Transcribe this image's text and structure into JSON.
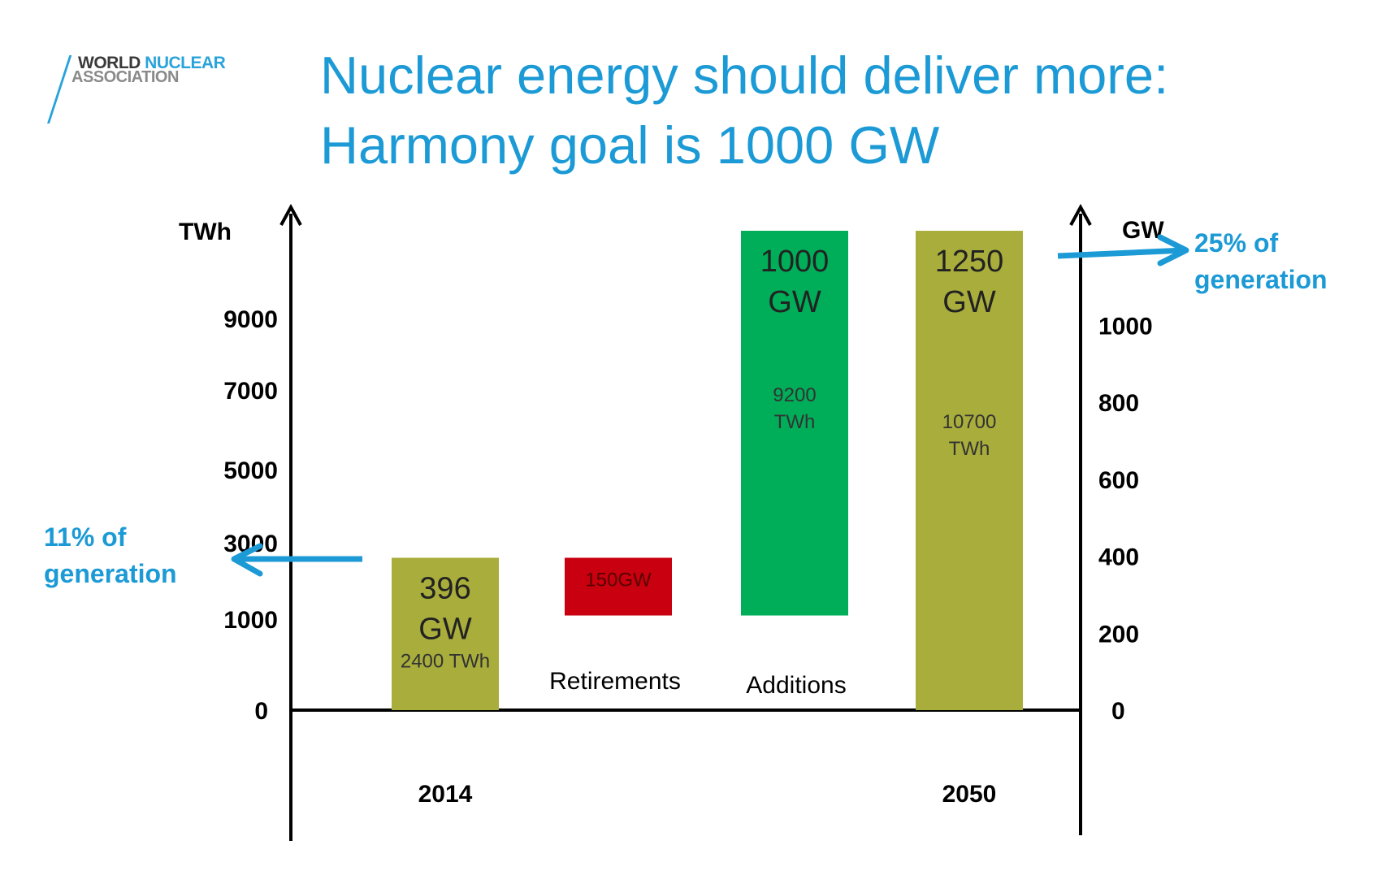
{
  "logo": {
    "line1_a": "WORLD ",
    "line1_b": "NUCLEAR",
    "line2": "ASSOCIATION"
  },
  "title": {
    "line1": "Nuclear energy should deliver more:",
    "line2": "Harmony goal is 1000 GW"
  },
  "colors": {
    "title": "#1c9ad6",
    "olive": "#a8ad3b",
    "red": "#c8000f",
    "green": "#00ad58",
    "axis": "#000000",
    "arrow": "#1c9ad6"
  },
  "chart_data": {
    "type": "bar",
    "subtype": "waterfall",
    "left_axis": {
      "label": "TWh",
      "ticks": [
        0,
        1000,
        3000,
        5000,
        7000,
        9000
      ]
    },
    "right_axis": {
      "label": "GW",
      "ticks": [
        0,
        200,
        400,
        600,
        800,
        1000
      ]
    },
    "bars": [
      {
        "category": "2014",
        "color": "olive",
        "base": 0,
        "top": 396,
        "label_line1": "396",
        "label_line2": "GW",
        "sublabel_line1": "2400 TWh",
        "sublabel_line2": ""
      },
      {
        "category": "Retirements",
        "color": "red",
        "base": 246,
        "top": 396,
        "label_line1": "150GW",
        "label_line2": "",
        "sublabel_line1": "",
        "sublabel_line2": ""
      },
      {
        "category": "Additions",
        "color": "green",
        "base": 246,
        "top": 1246,
        "label_line1": "1000",
        "label_line2": "GW",
        "sublabel_line1": "9200",
        "sublabel_line2": "TWh"
      },
      {
        "category": "2050",
        "color": "olive",
        "base": 0,
        "top": 1246,
        "label_line1": "1250",
        "label_line2": "GW",
        "sublabel_line1": "10700",
        "sublabel_line2": "TWh"
      }
    ],
    "annotations": {
      "left": {
        "line1": "11% of",
        "line2": "generation"
      },
      "right": {
        "line1": "25% of",
        "line2": "generation"
      }
    }
  }
}
